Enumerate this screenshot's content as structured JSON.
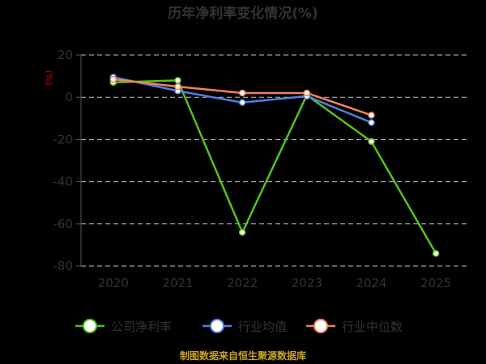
{
  "chart_data": {
    "type": "line",
    "title": "历年净利率变化情况(%)",
    "ylabel": "(%)",
    "xlabel": "",
    "categories": [
      "2020",
      "2021",
      "2022",
      "2023",
      "2024",
      "2025"
    ],
    "ylim": [
      -80,
      20
    ],
    "yticks": [
      20,
      0,
      -20,
      -40,
      -60,
      -80
    ],
    "grid": true,
    "legend_position": "bottom",
    "series": [
      {
        "name": "公司净利率",
        "color": "#52c41a",
        "values": [
          7,
          8,
          -64,
          1,
          -21,
          -74
        ]
      },
      {
        "name": "行业均值",
        "color": "#4f7fe8",
        "values": [
          9.5,
          3,
          -2.5,
          0.5,
          -12,
          null
        ]
      },
      {
        "name": "行业中位数",
        "color": "#f5835a",
        "values": [
          8.5,
          5,
          2,
          2,
          -8.5,
          null
        ]
      }
    ]
  },
  "source_text": "制图数据来自恒生聚源数据库"
}
